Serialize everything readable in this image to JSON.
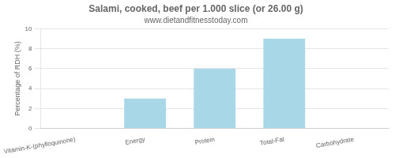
{
  "chart_data": {
    "type": "bar",
    "title": "Salami, cooked, beef per 1.000 slice (or 26.00 g)",
    "subtitle": "www.dietandfitnesstoday.com",
    "categories": [
      "Vitamin-K-(phylloquinone)",
      "Energy",
      "Protein",
      "Total-Fat",
      "Carbohydrate"
    ],
    "values": [
      0,
      3,
      6,
      9,
      0
    ],
    "color": "#a8d8e8",
    "ylabel": "Percentage of RDH (%)",
    "ylim": [
      0,
      10
    ],
    "yticks": [
      0,
      2,
      4,
      6,
      8,
      10
    ],
    "grid": true
  }
}
